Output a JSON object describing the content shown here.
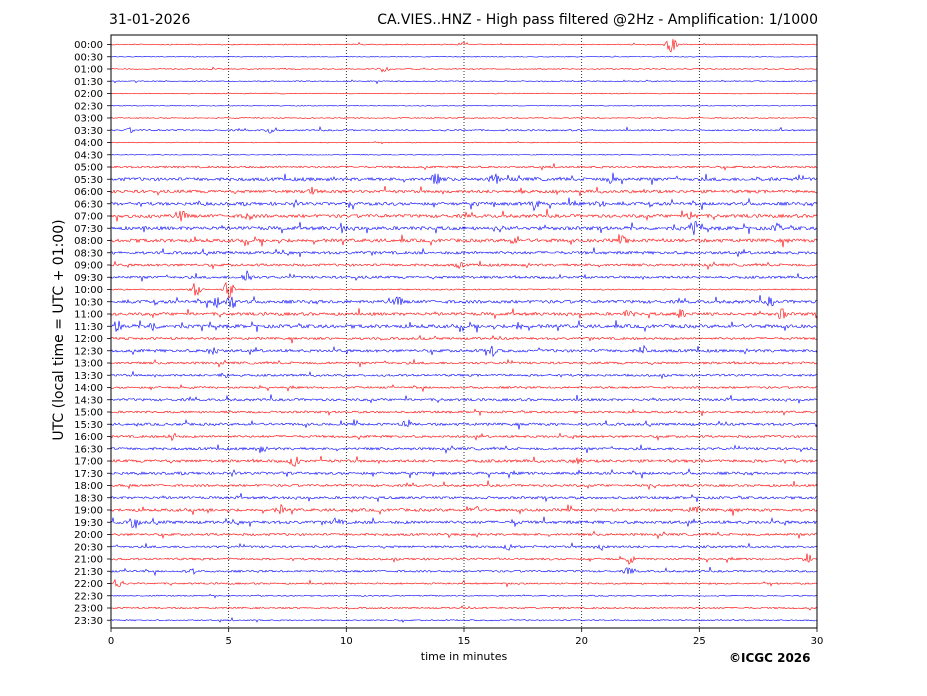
{
  "header": {
    "date": "31-01-2026",
    "title": "CA.VIES..HNZ - High pass filtered @2Hz - Amplification: 1/1000"
  },
  "footer": {
    "copyright": "©ICGC 2026"
  },
  "chart_data": {
    "type": "line",
    "title": "CA.VIES..HNZ - High pass filtered @2Hz - Amplification: 1/1000",
    "xlabel": "time in minutes",
    "ylabel": "UTC (local time = UTC + 01:00)",
    "xlim": [
      0,
      30
    ],
    "xticks": [
      0,
      5,
      10,
      15,
      20,
      25,
      30
    ],
    "xtick_labels": [
      "0",
      "5",
      "10",
      "15",
      "20",
      "25",
      "30"
    ],
    "vertical_gridlines_at": [
      5,
      10,
      15,
      20,
      25
    ],
    "grid": "dotted vertical lines",
    "row_labels": [
      "00:00",
      "00:30",
      "01:00",
      "01:30",
      "02:00",
      "02:30",
      "03:00",
      "03:30",
      "04:00",
      "04:30",
      "05:00",
      "05:30",
      "06:00",
      "06:30",
      "07:00",
      "07:30",
      "08:00",
      "08:30",
      "09:00",
      "09:30",
      "10:00",
      "10:30",
      "11:00",
      "11:30",
      "12:00",
      "12:30",
      "13:00",
      "13:30",
      "14:00",
      "14:30",
      "15:00",
      "15:30",
      "16:00",
      "16:30",
      "17:00",
      "17:30",
      "18:00",
      "18:30",
      "19:00",
      "19:30",
      "20:00",
      "20:30",
      "21:00",
      "21:30",
      "22:00",
      "22:30",
      "23:00",
      "23:30"
    ],
    "trace_colors": [
      "#ff0000",
      "#0000ff"
    ],
    "row_activity": [
      0.15,
      0.1,
      0.15,
      0.2,
      0.1,
      0.1,
      0.15,
      0.3,
      0.1,
      0.1,
      0.45,
      0.85,
      0.75,
      0.8,
      0.85,
      0.9,
      0.85,
      0.7,
      0.6,
      0.6,
      0.25,
      0.8,
      0.75,
      0.9,
      0.55,
      0.7,
      0.55,
      0.5,
      0.45,
      0.6,
      0.5,
      0.6,
      0.55,
      0.6,
      0.7,
      0.65,
      0.55,
      0.6,
      0.7,
      0.75,
      0.55,
      0.5,
      0.45,
      0.45,
      0.35,
      0.2,
      0.35,
      0.25
    ],
    "events": [
      {
        "row": 0,
        "x": 23.8,
        "amp": 9
      },
      {
        "row": 0,
        "x": 15.0,
        "amp": 3
      },
      {
        "row": 2,
        "x": 11.6,
        "amp": 4
      },
      {
        "row": 7,
        "x": 6.8,
        "amp": 4
      },
      {
        "row": 7,
        "x": 0.8,
        "amp": 3
      },
      {
        "row": 11,
        "x": 13.8,
        "amp": 8
      },
      {
        "row": 11,
        "x": 16.3,
        "amp": 7
      },
      {
        "row": 11,
        "x": 21.2,
        "amp": 5
      },
      {
        "row": 12,
        "x": 8.5,
        "amp": 6
      },
      {
        "row": 12,
        "x": 17.5,
        "amp": 5
      },
      {
        "row": 13,
        "x": 18.0,
        "amp": 8
      },
      {
        "row": 13,
        "x": 20.8,
        "amp": 5
      },
      {
        "row": 14,
        "x": 3.0,
        "amp": 7
      },
      {
        "row": 14,
        "x": 5.8,
        "amp": 6
      },
      {
        "row": 14,
        "x": 24.7,
        "amp": 7
      },
      {
        "row": 15,
        "x": 24.8,
        "amp": 11
      },
      {
        "row": 15,
        "x": 28.3,
        "amp": 6
      },
      {
        "row": 15,
        "x": 9.8,
        "amp": 6
      },
      {
        "row": 16,
        "x": 21.8,
        "amp": 6
      },
      {
        "row": 16,
        "x": 17.1,
        "amp": 5
      },
      {
        "row": 18,
        "x": 14.8,
        "amp": 4
      },
      {
        "row": 19,
        "x": 5.8,
        "amp": 9
      },
      {
        "row": 20,
        "x": 3.6,
        "amp": 9
      },
      {
        "row": 20,
        "x": 5.0,
        "amp": 10
      },
      {
        "row": 21,
        "x": 4.5,
        "amp": 7
      },
      {
        "row": 21,
        "x": 5.1,
        "amp": 10
      },
      {
        "row": 21,
        "x": 12.2,
        "amp": 6
      },
      {
        "row": 21,
        "x": 28.0,
        "amp": 6
      },
      {
        "row": 22,
        "x": 22.0,
        "amp": 6
      },
      {
        "row": 22,
        "x": 24.2,
        "amp": 6
      },
      {
        "row": 22,
        "x": 28.5,
        "amp": 7
      },
      {
        "row": 23,
        "x": 0.3,
        "amp": 8
      },
      {
        "row": 23,
        "x": 1.8,
        "amp": 7
      },
      {
        "row": 23,
        "x": 17.3,
        "amp": 6
      },
      {
        "row": 25,
        "x": 4.3,
        "amp": 7
      },
      {
        "row": 25,
        "x": 16.2,
        "amp": 7
      },
      {
        "row": 25,
        "x": 22.6,
        "amp": 8
      },
      {
        "row": 27,
        "x": 4.8,
        "amp": 5
      },
      {
        "row": 31,
        "x": 12.6,
        "amp": 6
      },
      {
        "row": 32,
        "x": 2.6,
        "amp": 5
      },
      {
        "row": 33,
        "x": 6.3,
        "amp": 5
      },
      {
        "row": 34,
        "x": 7.8,
        "amp": 8
      },
      {
        "row": 34,
        "x": 19.8,
        "amp": 5
      },
      {
        "row": 38,
        "x": 7.2,
        "amp": 6
      },
      {
        "row": 38,
        "x": 15.4,
        "amp": 7
      },
      {
        "row": 38,
        "x": 24.8,
        "amp": 6
      },
      {
        "row": 39,
        "x": 1.0,
        "amp": 8
      },
      {
        "row": 39,
        "x": 9.6,
        "amp": 6
      },
      {
        "row": 39,
        "x": 17.2,
        "amp": 5
      },
      {
        "row": 41,
        "x": 16.9,
        "amp": 5
      },
      {
        "row": 41,
        "x": 20.9,
        "amp": 5
      },
      {
        "row": 42,
        "x": 22.0,
        "amp": 6
      },
      {
        "row": 42,
        "x": 29.6,
        "amp": 6
      },
      {
        "row": 43,
        "x": 3.4,
        "amp": 5
      },
      {
        "row": 43,
        "x": 22.0,
        "amp": 5
      },
      {
        "row": 44,
        "x": 0.3,
        "amp": 7
      }
    ]
  }
}
